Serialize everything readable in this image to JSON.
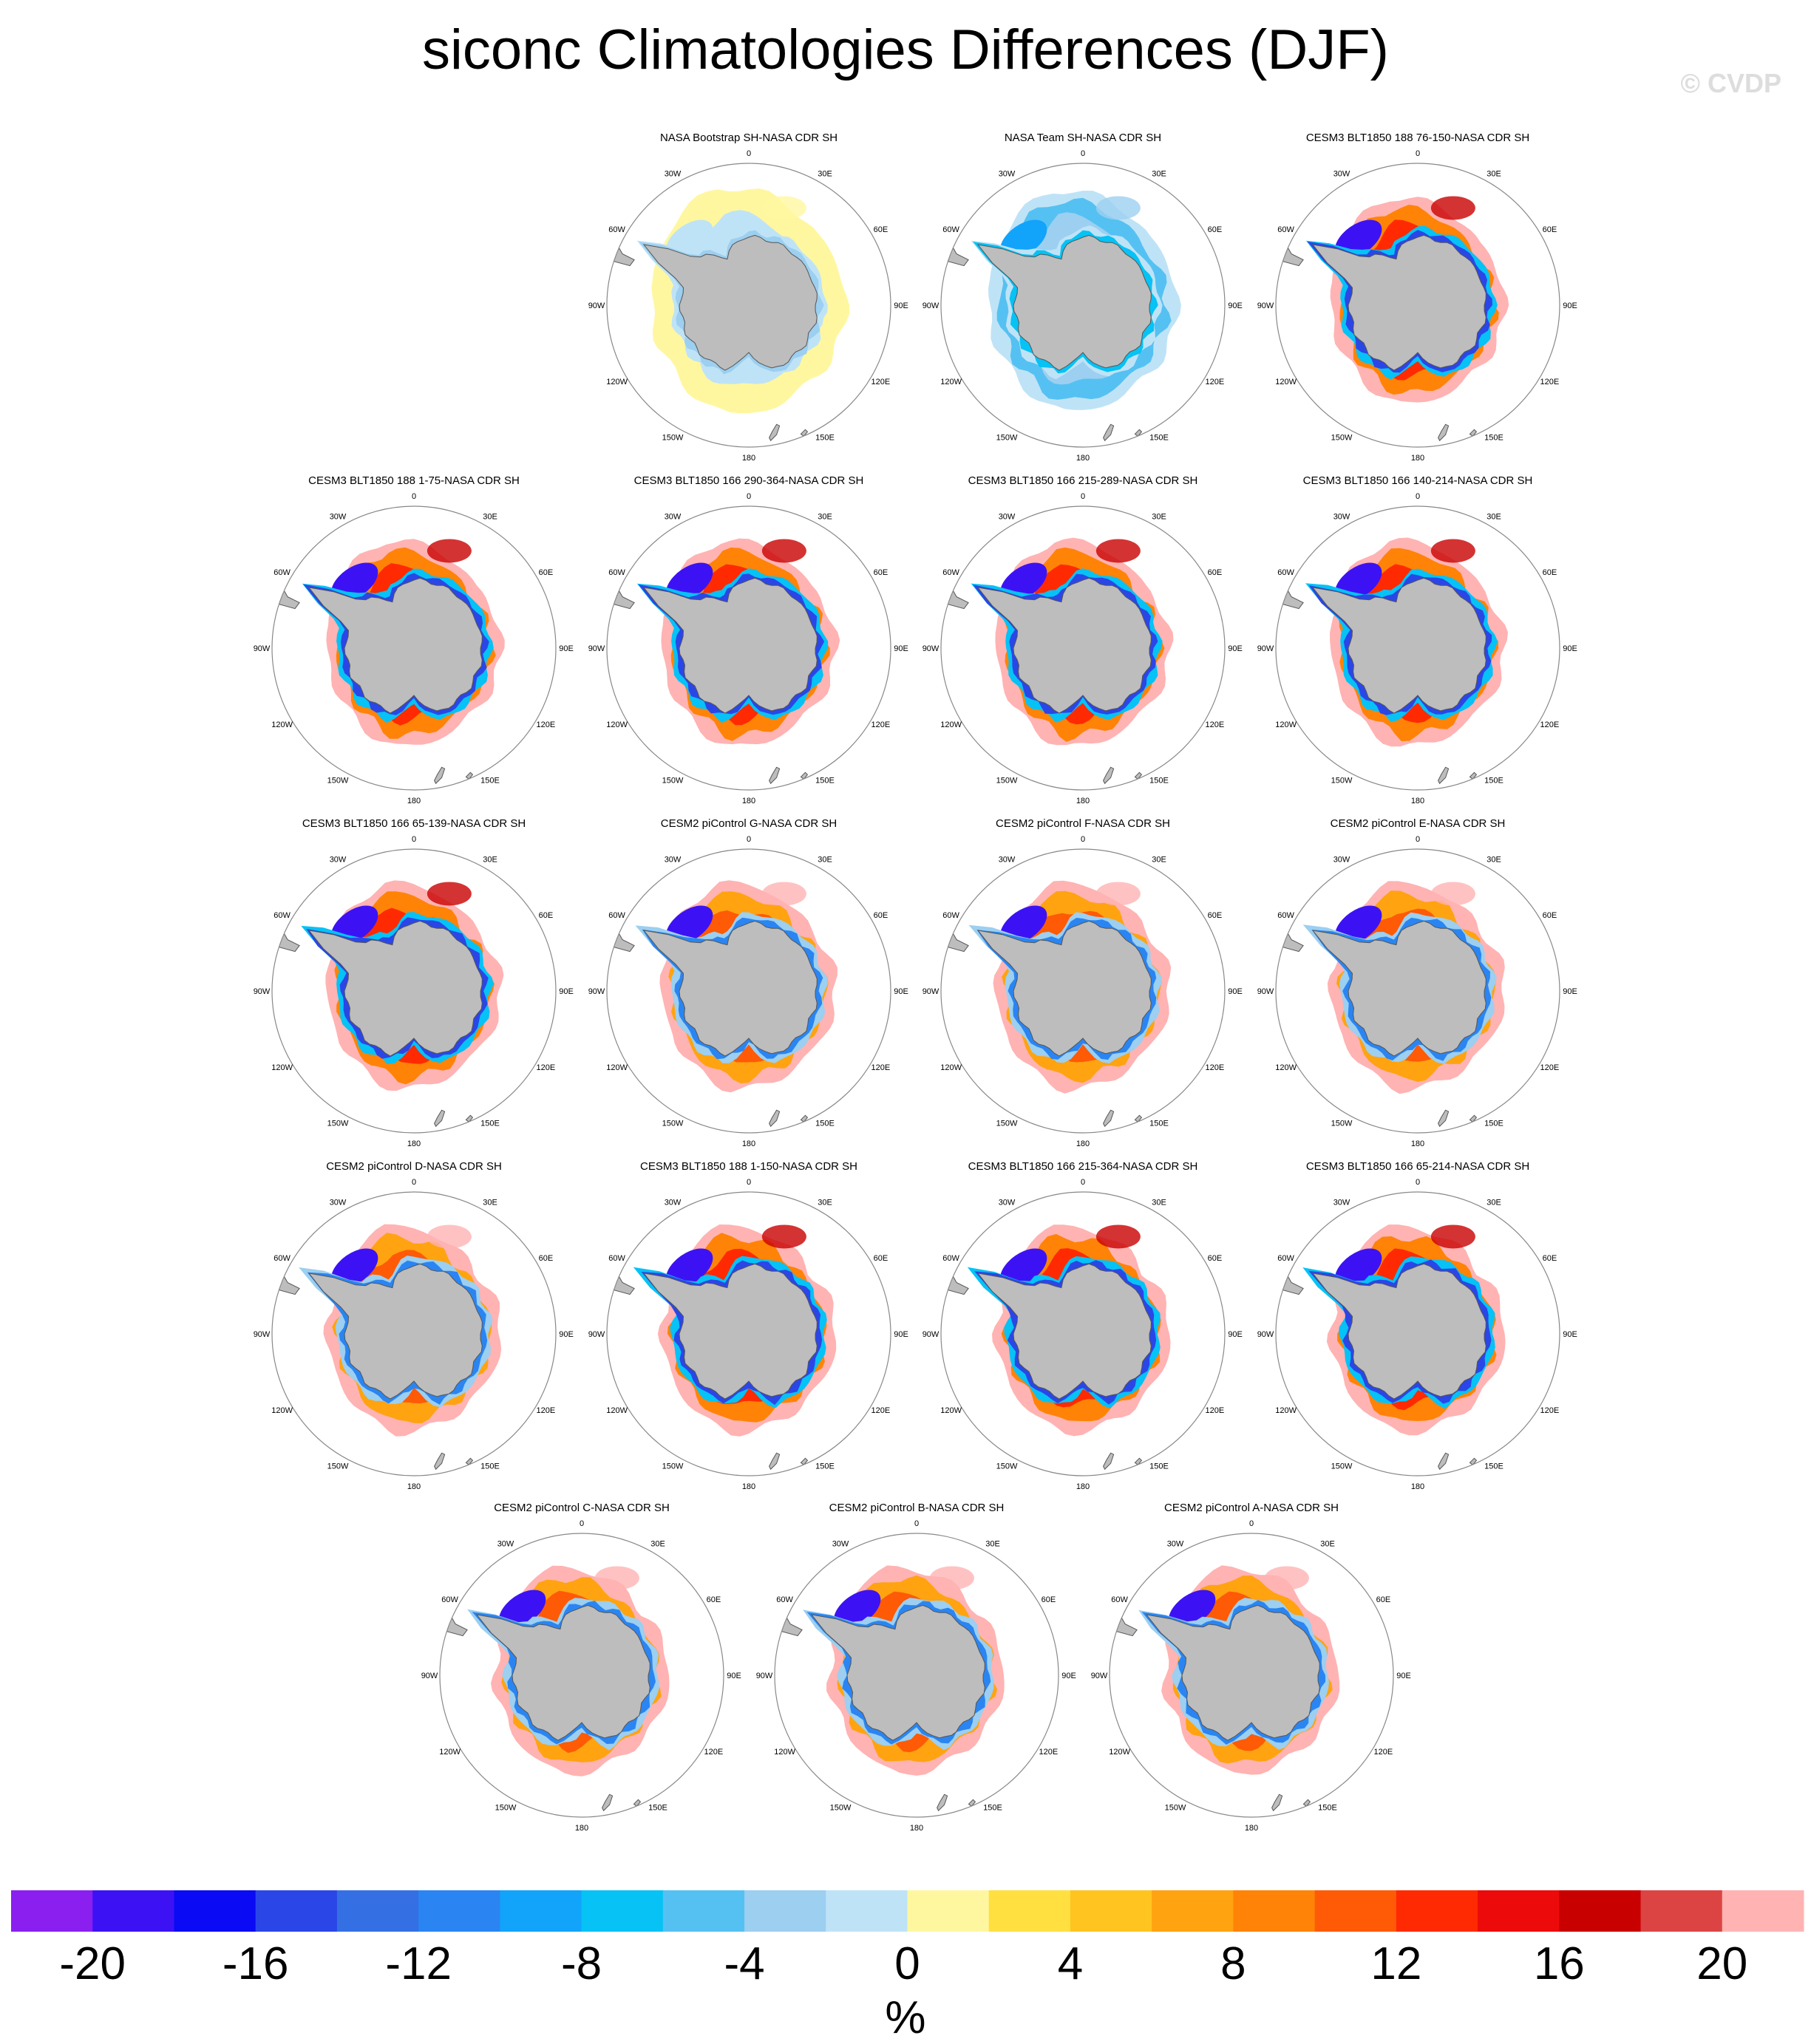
{
  "title": "siconc Climatologies Differences (DJF)",
  "watermark": "© CVDP",
  "panels": [
    {
      "title": "NASA Bootstrap SH-NASA CDR SH",
      "pattern": "bootstrap"
    },
    {
      "title": "NASA Team SH-NASA CDR SH",
      "pattern": "team"
    },
    {
      "title": "CESM3 BLT1850 188 76-150-NASA CDR SH",
      "pattern": "cesm3"
    },
    {
      "title": "CESM3 BLT1850 188 1-75-NASA CDR SH",
      "pattern": "cesm3"
    },
    {
      "title": "CESM3 BLT1850 166 290-364-NASA CDR SH",
      "pattern": "cesm3"
    },
    {
      "title": "CESM3 BLT1850 166 215-289-NASA CDR SH",
      "pattern": "cesm3"
    },
    {
      "title": "CESM3 BLT1850 166 140-214-NASA CDR SH",
      "pattern": "cesm3"
    },
    {
      "title": "CESM3 BLT1850 166 65-139-NASA CDR SH",
      "pattern": "cesm3"
    },
    {
      "title": "CESM2 piControl G-NASA CDR SH",
      "pattern": "cesm2"
    },
    {
      "title": "CESM2 piControl F-NASA CDR SH",
      "pattern": "cesm2"
    },
    {
      "title": "CESM2 piControl E-NASA CDR SH",
      "pattern": "cesm2"
    },
    {
      "title": "CESM2 piControl D-NASA CDR SH",
      "pattern": "cesm2"
    },
    {
      "title": "CESM3 BLT1850 188 1-150-NASA CDR SH",
      "pattern": "cesm3"
    },
    {
      "title": "CESM3 BLT1850 166 215-364-NASA CDR SH",
      "pattern": "cesm3"
    },
    {
      "title": "CESM3 BLT1850 166 65-214-NASA CDR SH",
      "pattern": "cesm3"
    },
    {
      "title": "CESM2 piControl C-NASA CDR SH",
      "pattern": "cesm2"
    },
    {
      "title": "CESM2 piControl B-NASA CDR SH",
      "pattern": "cesm2"
    },
    {
      "title": "CESM2 piControl A-NASA CDR SH",
      "pattern": "cesm2"
    }
  ],
  "longitude_labels": [
    "0",
    "30E",
    "60E",
    "90E",
    "120E",
    "150E",
    "180",
    "150W",
    "120W",
    "90W",
    "60W",
    "30W"
  ],
  "colorbar": {
    "colors": [
      "#8a1ff0",
      "#3c12f5",
      "#0a0af5",
      "#2b46e6",
      "#3470e3",
      "#2a85f2",
      "#12a3fa",
      "#06c2f5",
      "#55c1f2",
      "#9ccff0",
      "#bfe3f6",
      "#fff7a0",
      "#ffe040",
      "#ffc41f",
      "#ffa310",
      "#ff8306",
      "#ff5a05",
      "#ff2a02",
      "#ed0a0a",
      "#c90000",
      "#dc4444",
      "#ffb3b3"
    ],
    "labels": [
      "-20",
      "-16",
      "-12",
      "-8",
      "-4",
      "0",
      "4",
      "8",
      "12",
      "16",
      "20"
    ],
    "units": "%"
  }
}
